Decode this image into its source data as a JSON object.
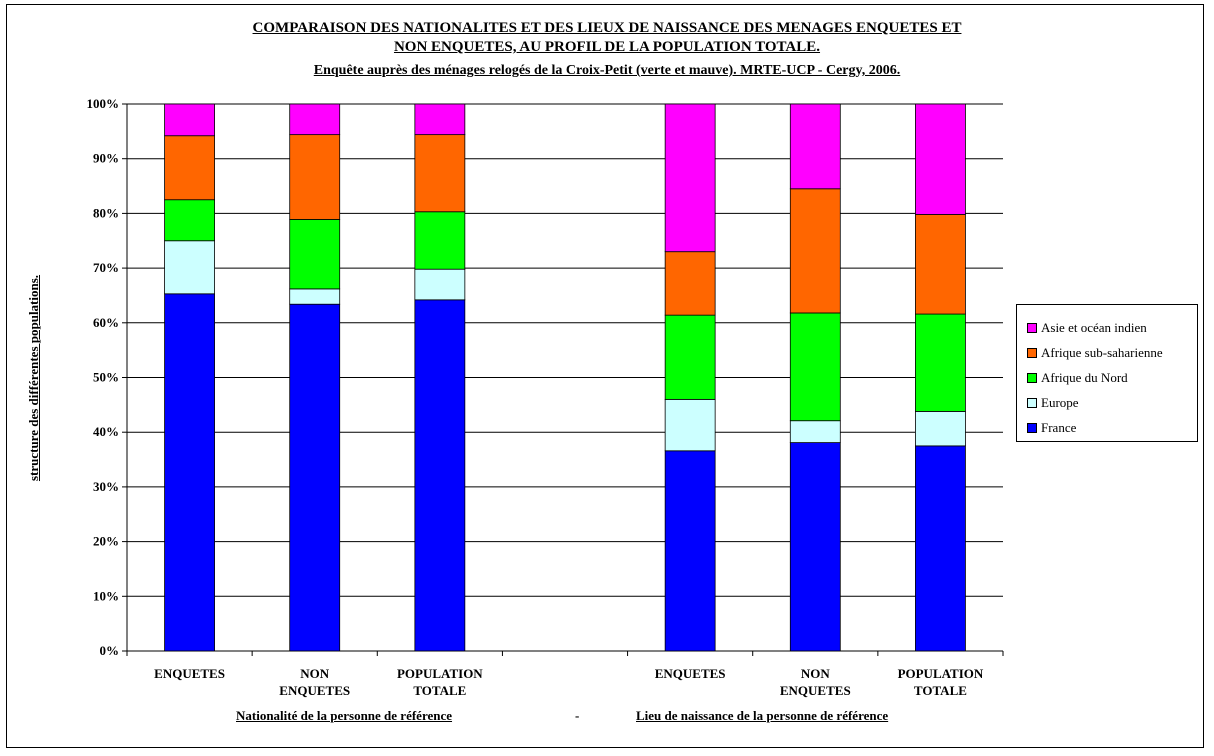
{
  "chart_data": {
    "type": "bar",
    "stacked": true,
    "percent_stacked": true,
    "title": "COMPARAISON DES NATIONALITES ET DES LIEUX DE NAISSANCE DES MENAGES ENQUETES ET",
    "title_line2": "NON ENQUETES, AU PROFIL DE LA POPULATION TOTALE.",
    "subtitle": "Enquête auprès des ménages relogés de la Croix-Petit (verte et mauve). MRTE-UCP - Cergy, 2006.",
    "ylabel": "structure des différentes populations.",
    "xlabel_left": "Nationalité de la personne de référence",
    "xlabel_sep": "-",
    "xlabel_right": "Lieu de naissance de la personne de référence",
    "ylim": [
      0,
      100
    ],
    "yticks": [
      "0%",
      "10%",
      "20%",
      "30%",
      "40%",
      "50%",
      "60%",
      "70%",
      "80%",
      "90%",
      "100%"
    ],
    "grid": true,
    "legend_position": "right",
    "categories": [
      [
        "ENQUETES"
      ],
      [
        "NON",
        "ENQUETES"
      ],
      [
        "POPULATION",
        "TOTALE"
      ],
      [],
      [
        "ENQUETES"
      ],
      [
        "NON",
        "ENQUETES"
      ],
      [
        "POPULATION",
        "TOTALE"
      ]
    ],
    "series": [
      {
        "name": "France",
        "color": "#0000ff",
        "values": [
          65.3,
          63.4,
          64.2,
          null,
          36.6,
          38.1,
          37.5
        ]
      },
      {
        "name": "Europe",
        "color": "#ccffff",
        "values": [
          9.7,
          2.8,
          5.6,
          null,
          9.4,
          4.0,
          6.3
        ]
      },
      {
        "name": "Afrique du Nord",
        "color": "#00ff00",
        "values": [
          7.5,
          12.7,
          10.5,
          null,
          15.4,
          19.7,
          17.8
        ]
      },
      {
        "name": "Afrique sub-saharienne",
        "color": "#ff6600",
        "values": [
          11.7,
          15.5,
          14.1,
          null,
          11.6,
          22.7,
          18.2
        ]
      },
      {
        "name": "Asie et océan indien",
        "color": "#ff00ff",
        "values": [
          5.8,
          5.6,
          5.6,
          null,
          27.0,
          15.5,
          20.2
        ]
      }
    ]
  }
}
